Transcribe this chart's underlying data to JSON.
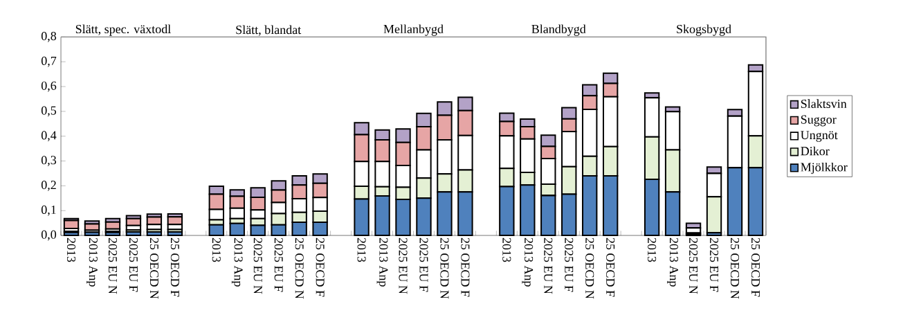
{
  "chart_data": {
    "type": "bar",
    "stacked": true,
    "legend": "right",
    "annotations": [
      "Slätt, spec. växtodl",
      "Slätt, blandat",
      "Mellanbygd",
      "Blandbygd",
      "Skogsbygd"
    ],
    "categories": [
      "2013",
      "2013 Anp",
      "2025 EU N",
      "2025 EU F",
      "25 OECD N",
      "25 OECD F",
      null,
      "2013",
      "2013 Anp",
      "2025 EU N",
      "2025 EU F",
      "25 OECD N",
      "25 OECD F",
      null,
      "2013",
      "2013 Anp",
      "2025 EU N",
      "2025 EU F",
      "25 OECD N",
      "25 OECD F",
      null,
      "2013",
      "2013 Anp",
      "2025 EU N",
      "2025 EU F",
      "25 OECD N",
      "25 OECD F",
      null,
      "2013",
      "2013 Anp",
      "2025 EU N",
      "2025 EU F",
      "25 OECD N",
      "25 OECD F"
    ],
    "ylim": [
      0,
      0.8
    ],
    "yticks": [
      {
        "value": 0,
        "label": "0,0"
      },
      {
        "value": 0.1,
        "label": "0,1"
      },
      {
        "value": 0.2,
        "label": "0,2"
      },
      {
        "value": 0.3,
        "label": "0,3"
      },
      {
        "value": 0.4,
        "label": "0,4"
      },
      {
        "value": 0.5,
        "label": "0,5"
      },
      {
        "value": 0.6,
        "label": "0,6"
      },
      {
        "value": 0.7,
        "label": "0,7"
      },
      {
        "value": 0.8,
        "label": "0,8"
      }
    ],
    "series": [
      {
        "name": "Mjölkkor",
        "color": "#4f81bd",
        "values": [
          0.012,
          0.013,
          0.012,
          0.014,
          0.014,
          0.014,
          null,
          0.043,
          0.048,
          0.041,
          0.043,
          0.053,
          0.053,
          null,
          0.147,
          0.159,
          0.145,
          0.15,
          0.175,
          0.175,
          null,
          0.197,
          0.203,
          0.161,
          0.166,
          0.24,
          0.24,
          null,
          0.226,
          0.175,
          0.005,
          0.011,
          0.273,
          0.273
        ]
      },
      {
        "name": "Dikor",
        "color": "#e4f0d4",
        "values": [
          0.004,
          null,
          0.004,
          0.008,
          0.01,
          0.01,
          null,
          0.02,
          0.02,
          0.027,
          0.045,
          0.04,
          0.045,
          null,
          0.051,
          0.037,
          0.049,
          0.081,
          0.073,
          0.089,
          null,
          0.073,
          0.051,
          0.046,
          0.111,
          0.079,
          0.118,
          null,
          0.171,
          0.17,
          0.005,
          0.145,
          null,
          0.128
        ]
      },
      {
        "name": "Ungnöt",
        "color": "#ffffff",
        "values": [
          0.012,
          0.008,
          0.01,
          0.018,
          0.02,
          0.02,
          null,
          0.042,
          0.042,
          0.035,
          0.045,
          0.055,
          0.055,
          null,
          0.1,
          0.102,
          0.088,
          0.114,
          0.137,
          0.139,
          null,
          0.131,
          0.135,
          0.103,
          0.142,
          0.189,
          0.201,
          null,
          0.158,
          0.154,
          0.02,
          0.094,
          0.208,
          0.26
        ]
      },
      {
        "name": "Suggor",
        "color": "#e6a5a5",
        "values": [
          0.032,
          0.025,
          0.028,
          0.028,
          0.03,
          0.031,
          null,
          0.061,
          0.048,
          0.051,
          0.05,
          0.055,
          0.057,
          null,
          0.108,
          0.087,
          0.093,
          0.093,
          0.099,
          0.1,
          null,
          0.058,
          0.049,
          0.049,
          0.051,
          0.055,
          0.054,
          null,
          0,
          0,
          0,
          0,
          0,
          0
        ]
      },
      {
        "name": "Slaktsvin",
        "color": "#b3a2c7",
        "values": [
          0.008,
          0.012,
          0.014,
          0.012,
          0.012,
          0.012,
          null,
          0.032,
          0.026,
          0.038,
          0.037,
          0.037,
          0.038,
          null,
          0.048,
          0.04,
          0.054,
          0.054,
          0.054,
          0.054,
          null,
          0.034,
          0.031,
          0.045,
          0.045,
          0.044,
          0.041,
          null,
          0.019,
          0.019,
          0.019,
          0.026,
          0.026,
          0.026
        ]
      }
    ]
  }
}
